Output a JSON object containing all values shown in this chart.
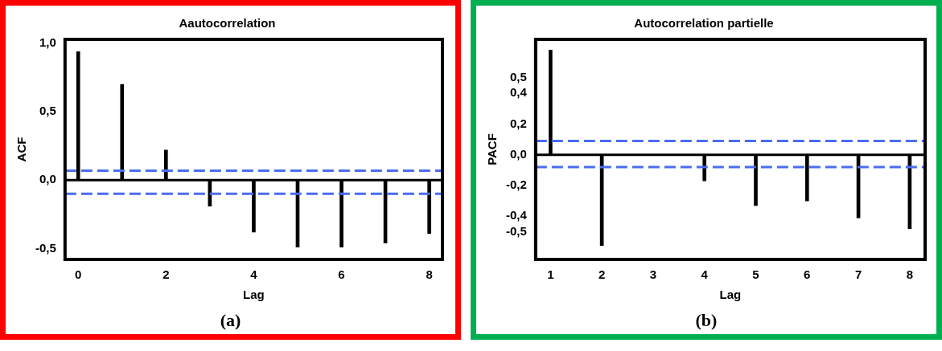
{
  "chart_data": [
    {
      "type": "bar",
      "title": "Aautocorrelation",
      "xlabel": "Lag",
      "ylabel": "ACF",
      "x": [
        0,
        1,
        2,
        3,
        4,
        5,
        6,
        7,
        8
      ],
      "series": [
        {
          "color": "#000000",
          "values": [
            0.94,
            0.7,
            0.22,
            -0.19,
            -0.38,
            -0.49,
            -0.49,
            -0.46,
            -0.39
          ]
        }
      ],
      "xlim": [
        -0.3,
        8.3
      ],
      "xticks": [
        0,
        2,
        4,
        6,
        8
      ],
      "ylim": [
        -0.58,
        1.03
      ],
      "yticks": [
        {
          "value": -0.5,
          "label": "-0,5"
        },
        {
          "value": 0,
          "label": "0,0"
        },
        {
          "value": 0.5,
          "label": "0,5"
        },
        {
          "value": 1,
          "label": "1,0"
        }
      ],
      "ref_lines": [
        {
          "axis": "y",
          "value": 0,
          "color": "#000000",
          "line_style": "solid"
        },
        {
          "axis": "y",
          "value": 0.07,
          "color": "#4a6cf0",
          "line_style": "dashed"
        },
        {
          "axis": "y",
          "value": -0.1,
          "color": "#4a6cf0",
          "line_style": "dashed"
        }
      ],
      "annotations": [
        "(a)"
      ],
      "grid": false,
      "legend": false
    },
    {
      "type": "bar",
      "title": "Autocorrelation partielle",
      "xlabel": "Lag",
      "ylabel": "PACF",
      "x": [
        1,
        2,
        3,
        4,
        5,
        6,
        7,
        8
      ],
      "series": [
        {
          "color": "#000000",
          "values": [
            0.68,
            -0.59,
            null,
            -0.17,
            -0.33,
            -0.3,
            -0.41,
            -0.48
          ]
        }
      ],
      "xlim": [
        0.71,
        8.3
      ],
      "xticks": [
        1,
        2,
        3,
        4,
        5,
        6,
        7,
        8
      ],
      "ylim": [
        -0.68,
        0.75
      ],
      "yticks": [
        {
          "value": -0.5,
          "label": "-0,5"
        },
        {
          "value": -0.4,
          "label": "-0,4"
        },
        {
          "value": -0.2,
          "label": "-0,2"
        },
        {
          "value": 0,
          "label": "0,0"
        },
        {
          "value": 0.2,
          "label": "0,2"
        },
        {
          "value": 0.4,
          "label": "0,4"
        },
        {
          "value": 0.5,
          "label": "0,5"
        }
      ],
      "ref_lines": [
        {
          "axis": "y",
          "value": 0,
          "color": "#000000",
          "line_style": "solid"
        },
        {
          "axis": "y",
          "value": 0.09,
          "color": "#4a6cf0",
          "line_style": "dashed"
        },
        {
          "axis": "y",
          "value": -0.08,
          "color": "#4a6cf0",
          "line_style": "dashed"
        }
      ],
      "annotations": [
        "(b)"
      ],
      "grid": false,
      "legend": false
    }
  ]
}
